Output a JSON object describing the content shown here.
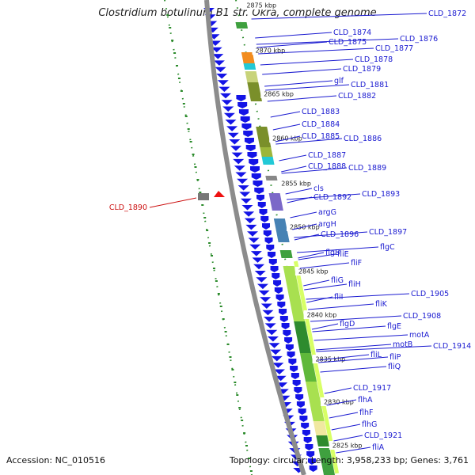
{
  "title": "Clostridium botulinum B1 str. Okra, complete genome",
  "footer": {
    "accession": "Accession: NC_010516",
    "topology": "Topology: circular; Length: 3,958,233 bp; Genes: 3,761"
  },
  "ticks": [
    "2875 kbp",
    "2870 kbp",
    "2865 kbp",
    "2860 kbp",
    "2855 kbp",
    "2850 kbp",
    "2845 kbp",
    "2840 kbp",
    "2835 kbp",
    "2830 kbp",
    "2825 kbp"
  ],
  "genes": [
    "CLD_1872",
    "CLD_1874",
    "CLD_1875",
    "CLD_1876",
    "CLD_1877",
    "CLD_1878",
    "CLD_1879",
    "glf",
    "CLD_1881",
    "CLD_1882",
    "CLD_1883",
    "CLD_1884",
    "CLD_1885",
    "CLD_1886",
    "CLD_1887",
    "CLD_1888",
    "CLD_1889",
    "cls",
    "CLD_1892",
    "CLD_1893",
    "argG",
    "argH",
    "CLD_1896",
    "CLD_1897",
    "flgC",
    "fliE",
    "flgB",
    "fliF",
    "fliG",
    "fliH",
    "CLD_1905",
    "fliI",
    "fliK",
    "CLD_1908",
    "flgD",
    "flgE",
    "motA",
    "motB",
    "CLD_1914",
    "fliL",
    "fliP",
    "fliQ",
    "CLD_1917",
    "flhA",
    "flhF",
    "flhG",
    "CLD_1921",
    "fliA"
  ],
  "left_gene": "CLD_1890",
  "colors": {
    "arrow": "#1414e6",
    "label": "#1a1ad0",
    "left_label": "#cc1111",
    "backbone": "#8c8c8c",
    "dots": "#2a8a2a",
    "gc_light": "#ccff33",
    "gc_dark": "#2e8b2e",
    "olive": "#7a8f2a",
    "orange": "#f28c1e",
    "cyan": "#22c9d6",
    "steelblue": "#4682b4",
    "purple": "#7b68c8"
  }
}
